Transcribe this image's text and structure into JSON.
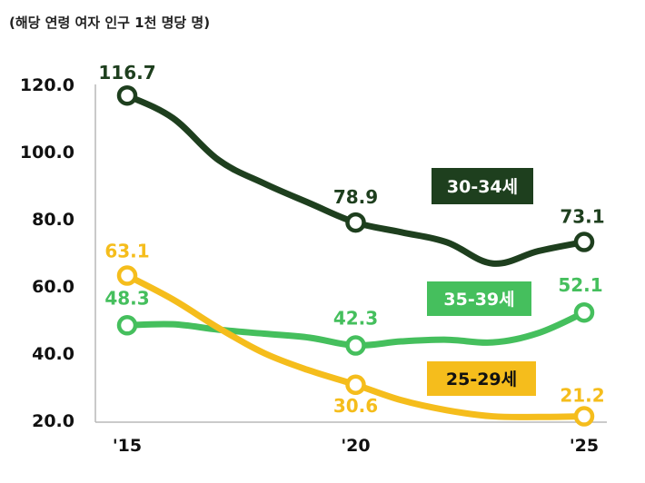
{
  "chart_data": {
    "type": "line",
    "unit_label": "(해당 연령 여자 인구 1천 명당 명)",
    "x_ticks": [
      "'15",
      "'20",
      "'25"
    ],
    "x": [
      2015,
      2016,
      2017,
      2018,
      2019,
      2020,
      2021,
      2022,
      2023,
      2024,
      2025
    ],
    "ylim": [
      20,
      120
    ],
    "y_ticks": [
      "20.0",
      "40.0",
      "60.0",
      "80.0",
      "100.0",
      "120.0"
    ],
    "grid": false,
    "series": [
      {
        "name": "30-34세",
        "color": "#1e3f1e",
        "values": [
          116.7,
          110.0,
          97.5,
          90.5,
          84.6,
          78.9,
          76.0,
          73.0,
          66.7,
          70.4,
          73.1
        ],
        "labels": [
          {
            "index": 0,
            "text": "116.7"
          },
          {
            "index": 5,
            "text": "78.9"
          },
          {
            "index": 10,
            "text": "73.1"
          }
        ]
      },
      {
        "name": "35-39세",
        "color": "#45bf5d",
        "values": [
          48.3,
          48.6,
          47.0,
          45.8,
          44.6,
          42.3,
          43.5,
          44.0,
          43.2,
          46.0,
          52.1
        ],
        "labels": [
          {
            "index": 0,
            "text": "48.3"
          },
          {
            "index": 5,
            "text": "42.3"
          },
          {
            "index": 10,
            "text": "52.1"
          }
        ]
      },
      {
        "name": "25-29세",
        "color": "#f5bd1c",
        "values": [
          63.1,
          56.0,
          47.5,
          40.0,
          34.8,
          30.6,
          26.0,
          23.0,
          21.2,
          21.0,
          21.2
        ],
        "labels": [
          {
            "index": 0,
            "text": "63.1"
          },
          {
            "index": 5,
            "text": "30.6"
          },
          {
            "index": 10,
            "text": "21.2"
          }
        ]
      }
    ]
  }
}
